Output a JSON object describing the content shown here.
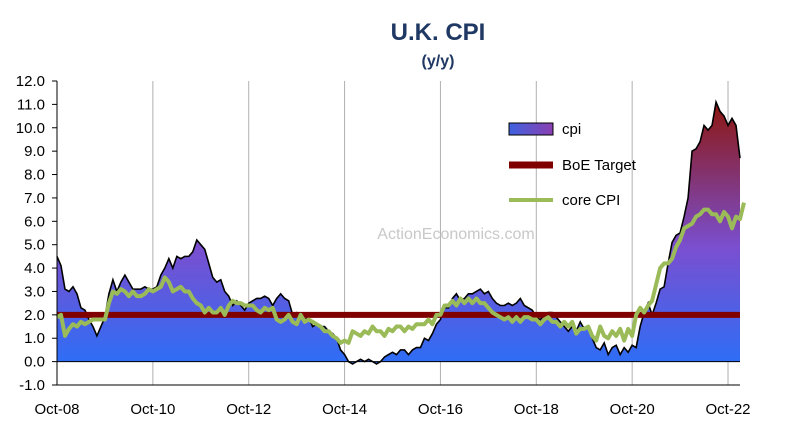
{
  "chart_data": {
    "type": "area",
    "title": "U.K. CPI",
    "subtitle": "(y/y)",
    "watermark": "ActionEconomics.com",
    "xlabel": "",
    "ylabel": "",
    "ylim": [
      -1.0,
      12.0
    ],
    "ytick_labels": [
      "-1.0",
      "0.0",
      "1.0",
      "2.0",
      "3.0",
      "4.0",
      "5.0",
      "6.0",
      "7.0",
      "8.0",
      "9.0",
      "10.0",
      "11.0",
      "12.0"
    ],
    "xtick_labels": [
      "Oct-08",
      "Oct-10",
      "Oct-12",
      "Oct-14",
      "Oct-16",
      "Oct-18",
      "Oct-20",
      "Oct-22"
    ],
    "grid": "vertical",
    "legend": "upper-right",
    "x_start": "Oct-08",
    "x_end": "Feb-23",
    "series": [
      {
        "name": "cpi",
        "kind": "area",
        "color_low": "#2f6df5",
        "color_high": "#8c1a1a",
        "legend_color": "#7b52c8",
        "values": [
          4.5,
          4.1,
          3.1,
          3.0,
          3.2,
          2.9,
          2.3,
          2.2,
          1.8,
          1.5,
          1.1,
          1.5,
          1.9,
          2.9,
          3.5,
          3.0,
          3.4,
          3.7,
          3.4,
          3.1,
          3.1,
          3.1,
          3.2,
          3.1,
          3.1,
          3.2,
          3.7,
          4.0,
          4.4,
          4.0,
          4.5,
          4.4,
          4.5,
          4.5,
          4.7,
          5.2,
          5.0,
          4.8,
          4.2,
          3.6,
          3.4,
          3.5,
          3.0,
          2.8,
          2.4,
          2.6,
          2.4,
          2.2,
          2.5,
          2.6,
          2.7,
          2.7,
          2.8,
          2.7,
          2.4,
          2.7,
          2.9,
          2.7,
          2.6,
          2.0,
          2.1,
          2.0,
          1.8,
          1.9,
          1.5,
          1.6,
          1.5,
          1.5,
          1.3,
          1.2,
          1.0,
          0.5,
          0.3,
          0.0,
          -0.1,
          0.0,
          0.1,
          0.0,
          0.1,
          0.0,
          -0.1,
          0.0,
          0.2,
          0.3,
          0.4,
          0.3,
          0.5,
          0.5,
          0.3,
          0.5,
          0.6,
          0.6,
          1.0,
          0.9,
          1.2,
          1.6,
          1.8,
          2.3,
          2.3,
          2.7,
          2.9,
          2.6,
          2.7,
          2.9,
          2.9,
          3.0,
          3.1,
          2.9,
          3.0,
          2.7,
          2.5,
          2.4,
          2.4,
          2.5,
          2.4,
          2.5,
          2.7,
          2.4,
          2.3,
          2.2,
          1.9,
          1.8,
          2.0,
          2.1,
          2.1,
          1.9,
          1.7,
          1.5,
          1.3,
          1.5,
          1.3,
          1.7,
          1.4,
          1.5,
          1.0,
          0.6,
          0.5,
          0.8,
          0.3,
          0.6,
          0.7,
          0.3,
          0.6,
          0.4,
          0.7,
          0.6,
          1.5,
          2.1,
          2.5,
          2.0,
          2.5,
          3.1,
          3.2,
          4.2,
          5.1,
          5.4,
          5.5,
          6.2,
          7.0,
          9.0,
          9.1,
          9.4,
          10.1,
          9.9,
          10.1,
          11.1,
          10.7,
          10.5,
          10.1,
          10.4,
          10.1,
          8.7
        ]
      },
      {
        "name": "BoE Target",
        "kind": "line",
        "color": "#800000",
        "values": [
          2.0,
          2.0
        ]
      },
      {
        "name": "core CPI",
        "kind": "line",
        "color": "#9bbb59",
        "values": [
          1.9,
          2.0,
          1.1,
          1.4,
          1.6,
          1.5,
          1.7,
          1.6,
          1.7,
          1.8,
          1.8,
          1.8,
          1.8,
          2.5,
          3.0,
          2.9,
          3.1,
          3.0,
          2.8,
          3.0,
          2.8,
          2.8,
          2.9,
          3.1,
          3.0,
          3.1,
          3.2,
          3.6,
          3.4,
          3.0,
          3.1,
          3.2,
          3.0,
          3.0,
          2.7,
          2.5,
          2.4,
          2.1,
          2.3,
          2.1,
          2.1,
          2.3,
          2.0,
          2.4,
          2.6,
          2.5,
          2.5,
          2.4,
          2.4,
          2.4,
          2.2,
          2.1,
          2.3,
          2.2,
          2.3,
          1.8,
          1.7,
          1.8,
          2.0,
          1.7,
          1.6,
          2.0,
          1.7,
          1.8,
          1.7,
          1.6,
          1.5,
          1.3,
          1.3,
          1.1,
          1.0,
          0.8,
          0.9,
          0.8,
          1.3,
          1.2,
          1.1,
          1.3,
          1.2,
          1.5,
          1.3,
          1.3,
          1.1,
          1.4,
          1.3,
          1.5,
          1.5,
          1.3,
          1.5,
          1.4,
          1.6,
          1.6,
          1.6,
          1.8,
          1.6,
          2.0,
          2.0,
          2.4,
          2.4,
          2.6,
          2.4,
          2.7,
          2.5,
          2.7,
          2.5,
          2.7,
          2.5,
          2.5,
          2.3,
          2.1,
          2.0,
          1.9,
          1.8,
          1.9,
          1.7,
          1.9,
          1.7,
          1.9,
          1.9,
          1.8,
          1.8,
          1.6,
          1.8,
          1.9,
          1.7,
          1.7,
          1.5,
          1.7,
          1.5,
          1.7,
          1.2,
          1.4,
          1.4,
          1.5,
          1.1,
          0.9,
          1.5,
          1.1,
          1.0,
          1.3,
          1.1,
          1.4,
          0.9,
          1.4,
          1.1,
          2.0,
          2.3,
          2.1,
          2.4,
          2.6,
          3.3,
          4.0,
          4.2,
          4.2,
          4.4,
          4.9,
          5.2,
          5.7,
          5.8,
          5.9,
          6.2,
          6.3,
          6.5,
          6.5,
          6.3,
          6.3,
          6.0,
          6.4,
          6.2,
          5.7,
          6.2,
          6.1,
          6.8
        ]
      }
    ]
  }
}
